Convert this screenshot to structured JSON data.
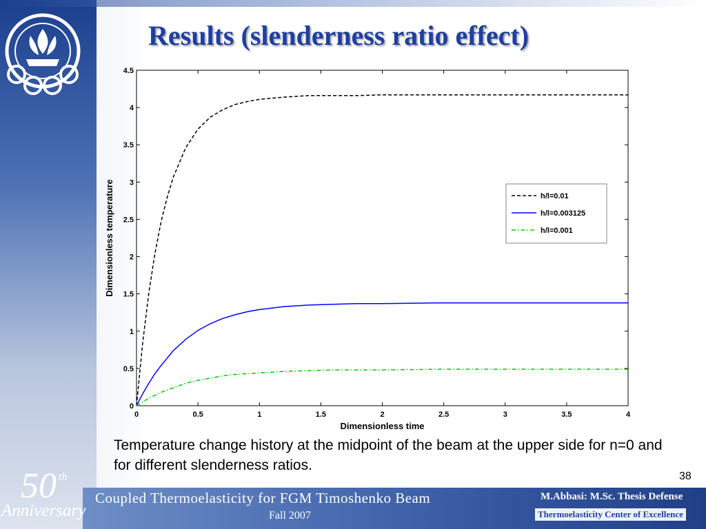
{
  "slide": {
    "title": "Results (slenderness ratio effect)",
    "caption": "Temperature change history at the midpoint of the beam at the upper side for n=0 and for different slenderness ratios.",
    "page_number": "38"
  },
  "footer": {
    "anniversary_number": "50",
    "anniversary_suffix": "th",
    "anniversary_word": "Anniversary",
    "title": "Coupled Thermoelasticity for FGM Timoshenko Beam",
    "date": "Fall 2007",
    "author": "M.Abbasi: M.Sc. Thesis Defense",
    "center": "Thermoelasticity Center of Excellence"
  },
  "colors": {
    "title": "#1f3fa0",
    "series_1": "#000000",
    "series_2": "#0000ff",
    "series_3": "#00cc00"
  },
  "icons": [
    "university-logo"
  ],
  "chart_data": {
    "type": "line",
    "xlabel": "Dimensionless time",
    "ylabel": "Dimensionless temperature",
    "xlim": [
      0,
      4
    ],
    "ylim": [
      0,
      4.5
    ],
    "xticks": [
      "0",
      "0.5",
      "1",
      "1.5",
      "2",
      "2.5",
      "3",
      "3.5",
      "4"
    ],
    "yticks": [
      "0",
      "0.5",
      "1",
      "1.5",
      "2",
      "2.5",
      "3",
      "3.5",
      "4",
      "4.5"
    ],
    "grid": false,
    "legend_position": "right-center",
    "x": [
      0,
      0.05,
      0.1,
      0.15,
      0.2,
      0.25,
      0.3,
      0.4,
      0.5,
      0.6,
      0.7,
      0.8,
      0.9,
      1.0,
      1.2,
      1.4,
      1.6,
      1.8,
      2.0,
      2.5,
      3.0,
      3.5,
      4.0
    ],
    "series": [
      {
        "name": "h/l=0.01",
        "style": "dashed",
        "values": [
          0,
          0.84,
          1.51,
          2.04,
          2.47,
          2.8,
          3.07,
          3.46,
          3.71,
          3.87,
          3.97,
          4.04,
          4.08,
          4.11,
          4.14,
          4.16,
          4.16,
          4.16,
          4.17,
          4.17,
          4.17,
          4.17,
          4.17
        ]
      },
      {
        "name": "h/l=0.003125",
        "style": "solid",
        "values": [
          0,
          0.16,
          0.3,
          0.43,
          0.54,
          0.64,
          0.74,
          0.89,
          1.01,
          1.1,
          1.17,
          1.22,
          1.26,
          1.29,
          1.33,
          1.35,
          1.36,
          1.37,
          1.37,
          1.38,
          1.38,
          1.38,
          1.38
        ]
      },
      {
        "name": "h/l=0.001",
        "style": "dashdot",
        "values": [
          0,
          0.05,
          0.1,
          0.14,
          0.18,
          0.21,
          0.24,
          0.3,
          0.34,
          0.37,
          0.4,
          0.42,
          0.43,
          0.44,
          0.46,
          0.47,
          0.48,
          0.48,
          0.48,
          0.49,
          0.49,
          0.49,
          0.49
        ]
      }
    ]
  }
}
